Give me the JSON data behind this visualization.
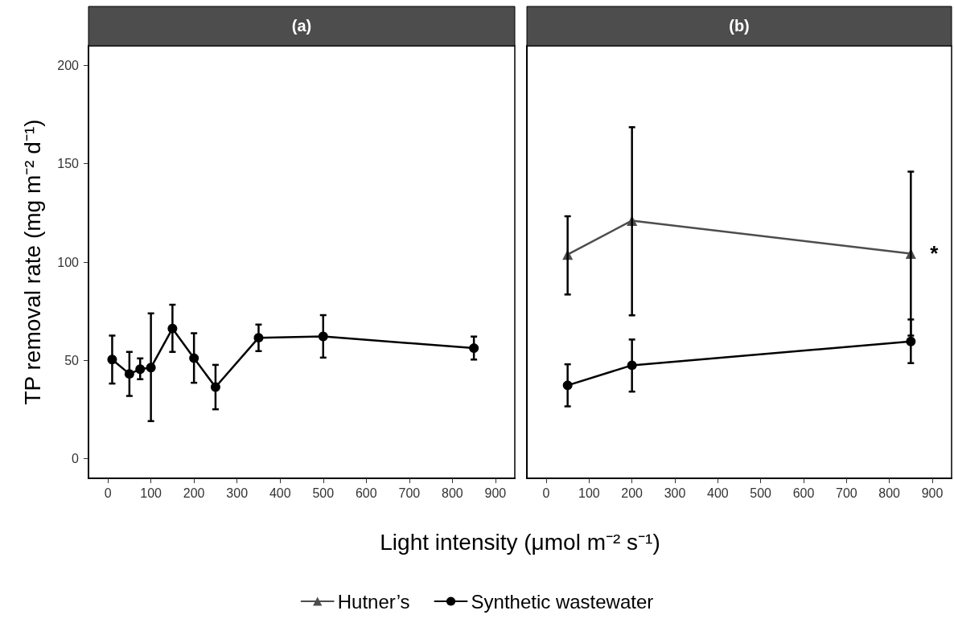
{
  "chart_data": [
    {
      "type": "line",
      "title": "(a)",
      "ylabel": "TP removal rate (mg m⁻² d⁻¹)",
      "xlabel": "Light intensity (μmol m⁻² s⁻¹)",
      "xlim": [
        -45,
        945
      ],
      "xticks": [
        0,
        100,
        200,
        300,
        400,
        500,
        600,
        700,
        800,
        900
      ],
      "ylim": [
        -10,
        210
      ],
      "yticks": [
        0,
        50,
        100,
        150,
        200
      ],
      "grid": false,
      "marker": "circle",
      "line_style": "solid",
      "series": [
        {
          "color": "#000000",
          "x": [
            10,
            50,
            75,
            100,
            150,
            200,
            250,
            350,
            500,
            850
          ],
          "values": [
            50.4,
            43.1,
            45.5,
            46.3,
            66.2,
            51.1,
            36.4,
            61.5,
            62.2,
            56.2
          ],
          "errors": [
            [
              38.2,
              62.6
            ],
            [
              31.9,
              54.3
            ],
            [
              40.4,
              51
            ],
            [
              19.1,
              73.9
            ],
            [
              54.3,
              78.3
            ],
            [
              38.6,
              63.8
            ],
            [
              25.1,
              47.7
            ],
            [
              54.7,
              68.2
            ],
            [
              51.4,
              73
            ],
            [
              50.4,
              62.1
            ]
          ]
        }
      ]
    },
    {
      "type": "line",
      "title": "(b)",
      "xlim": [
        -45,
        945
      ],
      "xticks": [
        0,
        100,
        200,
        300,
        400,
        500,
        600,
        700,
        800,
        900
      ],
      "ylim": [
        -10,
        210
      ],
      "yticks": [
        0,
        50,
        100,
        150,
        200
      ],
      "tick_labels": "x",
      "grid": false,
      "legend": "bottom",
      "line_style": "solid",
      "annotations": [
        {
          "text": "*",
          "x": 850,
          "y": 104.3
        }
      ],
      "series": [
        {
          "name": "Hutner’s",
          "color": "#4d4d4d",
          "marker": "triangle",
          "x": [
            50,
            200,
            850
          ],
          "values": [
            103.8,
            121.1,
            104.3
          ],
          "errors": [
            [
              83.5,
              123.3
            ],
            [
              72.9,
              168.6
            ],
            [
              62.6,
              146
            ]
          ]
        },
        {
          "name": "Synthetic wastewater",
          "color": "#000000",
          "marker": "circle",
          "x": [
            50,
            200,
            850
          ],
          "values": [
            37.3,
            47.5,
            59.6
          ],
          "errors": [
            [
              26.6,
              48
            ],
            [
              34.1,
              60.6
            ],
            [
              48.6,
              70.8
            ]
          ]
        }
      ]
    }
  ]
}
